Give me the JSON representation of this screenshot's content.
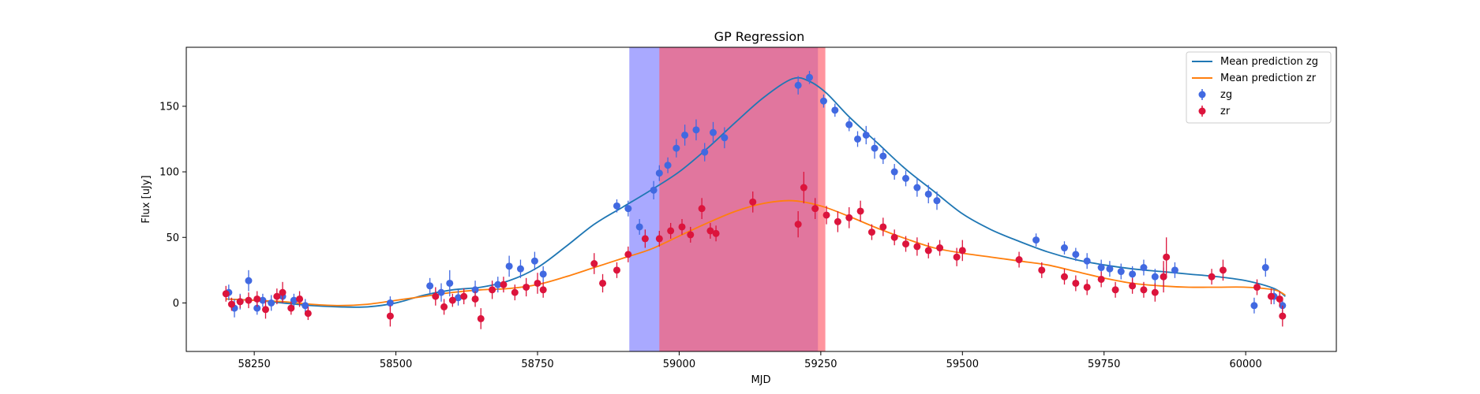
{
  "chart_data": {
    "type": "scatter",
    "title": "GP Regression",
    "xlabel": "MJD",
    "ylabel": "Flux [uJy]",
    "xlim": [
      58130,
      60160
    ],
    "ylim": [
      -37,
      195
    ],
    "xticks": [
      58250,
      58500,
      58750,
      59000,
      59250,
      59500,
      59750,
      60000
    ],
    "yticks": [
      0,
      50,
      100,
      150
    ],
    "grid": false,
    "legend_position": "top-right",
    "colors": {
      "mean_zg": "#1f77b4",
      "mean_zr": "#ff7f0e",
      "zg": "#4169e1",
      "zr": "#dc143c",
      "band_zg": "#7b7bff",
      "band_zr": "#ff5a6a"
    },
    "bands": [
      {
        "x0": 58912,
        "x1": 59245,
        "color": "#7b7bff"
      },
      {
        "x0": 58965,
        "x1": 59258,
        "color": "#ff5a6a"
      }
    ],
    "series": [
      {
        "name": "Mean prediction zg",
        "kind": "line",
        "x": [
          58200,
          58250,
          58300,
          58350,
          58400,
          58450,
          58500,
          58550,
          58600,
          58650,
          58700,
          58750,
          58800,
          58850,
          58900,
          58950,
          59000,
          59050,
          59100,
          59150,
          59200,
          59230,
          59260,
          59300,
          59350,
          59400,
          59450,
          59500,
          59550,
          59600,
          59650,
          59700,
          59750,
          59800,
          59850,
          59900,
          59950,
          60000,
          60050,
          60070
        ],
        "y": [
          3,
          2,
          0,
          -2,
          -3,
          -3,
          0,
          6,
          10,
          12,
          17,
          27,
          43,
          60,
          73,
          86,
          100,
          118,
          138,
          157,
          171,
          169,
          160,
          142,
          122,
          102,
          85,
          68,
          56,
          47,
          39,
          33,
          29,
          26,
          24,
          22,
          20,
          17,
          11,
          5
        ]
      },
      {
        "name": "Mean prediction zr",
        "kind": "line",
        "x": [
          58200,
          58250,
          58300,
          58350,
          58400,
          58450,
          58500,
          58550,
          58600,
          58650,
          58700,
          58750,
          58800,
          58850,
          58900,
          58950,
          59000,
          59050,
          59100,
          59150,
          59200,
          59250,
          59300,
          59350,
          59400,
          59450,
          59500,
          59550,
          59600,
          59650,
          59700,
          59750,
          59800,
          59850,
          59900,
          59950,
          60000,
          60050,
          60070
        ],
        "y": [
          3,
          2,
          1,
          -1,
          -2,
          -1,
          2,
          5,
          8,
          10,
          11,
          14,
          20,
          27,
          34,
          41,
          51,
          61,
          70,
          76,
          78,
          74,
          66,
          57,
          49,
          42,
          38,
          35,
          32,
          29,
          24,
          19,
          15,
          13,
          12,
          12,
          12,
          10,
          6
        ]
      },
      {
        "name": "zg",
        "kind": "errorbar",
        "x": [
          58205,
          58215,
          58225,
          58240,
          58255,
          58265,
          58280,
          58300,
          58320,
          58340,
          58490,
          58560,
          58580,
          58595,
          58610,
          58640,
          58680,
          58700,
          58720,
          58745,
          58760,
          58890,
          58910,
          58930,
          58955,
          58965,
          58980,
          58995,
          59010,
          59030,
          59045,
          59060,
          59080,
          59210,
          59230,
          59255,
          59275,
          59300,
          59315,
          59330,
          59345,
          59360,
          59380,
          59400,
          59420,
          59440,
          59455,
          59630,
          59680,
          59700,
          59720,
          59745,
          59760,
          59780,
          59800,
          59820,
          59840,
          59855,
          59875,
          60015,
          60035,
          60050,
          60065
        ],
        "y": [
          8,
          -4,
          1,
          17,
          -4,
          2,
          0,
          5,
          2,
          -2,
          0,
          13,
          8,
          15,
          4,
          10,
          14,
          28,
          26,
          32,
          22,
          74,
          72,
          58,
          86,
          99,
          105,
          118,
          128,
          132,
          115,
          130,
          126,
          166,
          172,
          154,
          147,
          136,
          125,
          128,
          118,
          112,
          100,
          95,
          88,
          83,
          78,
          48,
          42,
          37,
          32,
          27,
          26,
          24,
          22,
          27,
          20,
          20,
          25,
          -2,
          27,
          5,
          -2
        ],
        "err": [
          6,
          7,
          6,
          8,
          5,
          5,
          6,
          5,
          5,
          5,
          5,
          6,
          7,
          10,
          6,
          7,
          6,
          8,
          7,
          7,
          6,
          5,
          6,
          6,
          7,
          6,
          6,
          7,
          8,
          8,
          7,
          8,
          8,
          7,
          5,
          5,
          5,
          5,
          6,
          7,
          8,
          6,
          6,
          6,
          7,
          7,
          7,
          5,
          5,
          5,
          6,
          6,
          6,
          6,
          6,
          6,
          6,
          7,
          6,
          6,
          7,
          6,
          6
        ]
      },
      {
        "name": "zr",
        "kind": "errorbar",
        "x": [
          58200,
          58210,
          58225,
          58240,
          58255,
          58270,
          58290,
          58300,
          58315,
          58330,
          58345,
          58490,
          58570,
          58585,
          58600,
          58620,
          58640,
          58650,
          58670,
          58690,
          58710,
          58730,
          58750,
          58760,
          58850,
          58865,
          58890,
          58910,
          58940,
          58965,
          58985,
          59005,
          59020,
          59040,
          59055,
          59065,
          59130,
          59210,
          59220,
          59240,
          59260,
          59280,
          59300,
          59320,
          59340,
          59360,
          59380,
          59400,
          59420,
          59440,
          59460,
          59490,
          59500,
          59600,
          59640,
          59680,
          59700,
          59720,
          59745,
          59770,
          59800,
          59820,
          59840,
          59855,
          59860,
          59940,
          59960,
          60020,
          60045,
          60060,
          60065
        ],
        "y": [
          7,
          -1,
          1,
          2,
          3,
          -5,
          5,
          8,
          -4,
          3,
          -8,
          -10,
          5,
          -3,
          2,
          5,
          3,
          -12,
          10,
          14,
          8,
          12,
          15,
          10,
          30,
          15,
          25,
          37,
          49,
          49,
          55,
          58,
          52,
          72,
          55,
          53,
          77,
          60,
          88,
          72,
          67,
          62,
          65,
          70,
          54,
          58,
          50,
          45,
          43,
          40,
          42,
          35,
          40,
          33,
          25,
          20,
          15,
          12,
          18,
          10,
          13,
          10,
          8,
          20,
          35,
          20,
          25,
          12,
          5,
          3,
          -10
        ],
        "err": [
          6,
          5,
          5,
          6,
          6,
          7,
          6,
          8,
          5,
          6,
          5,
          8,
          7,
          6,
          5,
          6,
          6,
          8,
          7,
          6,
          6,
          7,
          8,
          6,
          8,
          7,
          6,
          6,
          7,
          6,
          6,
          6,
          6,
          8,
          6,
          6,
          8,
          10,
          12,
          8,
          7,
          8,
          8,
          8,
          6,
          7,
          6,
          6,
          7,
          6,
          6,
          7,
          8,
          6,
          6,
          6,
          6,
          6,
          6,
          6,
          6,
          6,
          7,
          12,
          15,
          6,
          8,
          6,
          6,
          6,
          8
        ]
      }
    ]
  }
}
